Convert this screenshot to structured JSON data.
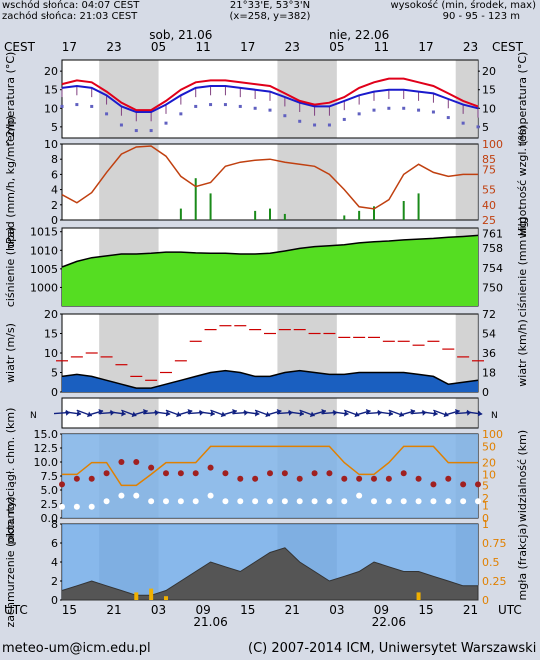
{
  "header": {
    "sunrise": "wschód słońca: 04:07 CEST",
    "sunset": "zachód słońca: 21:03 CEST",
    "coords": "21°33'E, 53°3'N",
    "grid": "(x=258, y=382)",
    "elev_label": "wysokość (min, środek, max)",
    "elev_values": "90 - 95 - 123 m"
  },
  "timeline": {
    "tz_top": "CEST",
    "tz_bottom": "UTC",
    "top_ticks": [
      "17",
      "23",
      "05",
      "11",
      "17",
      "23",
      "05",
      "11",
      "17",
      "23"
    ],
    "bottom_ticks": [
      "15",
      "21",
      "03",
      "09",
      "15",
      "21",
      "03",
      "09",
      "15",
      "21"
    ],
    "day1_top": "sob, 21.06",
    "day2_top": "nie, 22.06",
    "day1_bottom": "21.06",
    "day2_bottom": "22.06"
  },
  "footer": {
    "email": "meteo-um@icm.edu.pl",
    "copyright": "(C) 2007-2014 ICM, Uniwersytet Warszawski"
  },
  "colors": {
    "temp": "#e0001a",
    "dew": "#1a1acc",
    "humidity": "#c04010",
    "precip": "#1a8a1a",
    "pressure_fill": "#55dd22",
    "wind_fill": "#1a5fc0",
    "night_band": "#c8c8c8"
  },
  "chart_data": [
    {
      "type": "line",
      "panel": "temperature",
      "ylabel_left": "temperatura (°C)",
      "ylabel_right": "temperatura (°C)",
      "ylim": [
        2,
        23
      ],
      "ticks": [
        5,
        10,
        15,
        20
      ],
      "x_hours_utc": [
        14,
        16,
        18,
        20,
        22,
        24,
        26,
        28,
        30,
        32,
        34,
        36,
        38,
        40,
        42,
        44,
        46,
        48,
        50,
        52,
        54,
        56,
        58,
        60,
        62,
        64,
        66,
        68,
        70
      ],
      "series": [
        {
          "values": [
            16.5,
            17.5,
            17,
            14.5,
            11.5,
            9.5,
            9.5,
            12,
            15,
            17,
            17.5,
            17.5,
            17,
            16.5,
            16,
            14,
            12,
            11,
            11.5,
            13,
            15.5,
            17,
            18,
            18,
            17,
            16,
            14,
            12,
            10.5
          ]
        },
        {
          "values": [
            15.5,
            16,
            15.5,
            13.5,
            10.5,
            9,
            9,
            11,
            13.5,
            15.5,
            16,
            16,
            15.5,
            15,
            14.5,
            13,
            11.5,
            10.5,
            10.5,
            12,
            13.5,
            14.5,
            15,
            15,
            14.5,
            14,
            12.5,
            11,
            10
          ]
        }
      ]
    },
    {
      "type": "bar",
      "panel": "precip-humidity",
      "ylabel_left": "opad (mm/h, kg/m^2/h)",
      "ylabel_right": "wilgotność wzgl. (%)",
      "ylim_left": [
        0,
        10
      ],
      "ticks_left": [
        0,
        2,
        4,
        6,
        8,
        10
      ],
      "ylim_right": [
        25,
        100
      ],
      "ticks_right": [
        25,
        40,
        55,
        75,
        85,
        100
      ],
      "humidity": [
        50,
        42,
        52,
        72,
        90,
        97,
        98,
        88,
        68,
        58,
        62,
        78,
        82,
        84,
        85,
        82,
        80,
        78,
        70,
        55,
        38,
        36,
        45,
        70,
        80,
        72,
        68,
        70,
        70
      ],
      "precip_hour_utc": [
        30,
        32,
        34,
        40,
        42,
        44,
        52,
        54,
        56,
        60,
        62
      ],
      "precip_mm": [
        1.5,
        5.5,
        3.5,
        1.2,
        1.5,
        0.8,
        0.6,
        1.2,
        1.8,
        2.5,
        3.5
      ]
    },
    {
      "type": "area",
      "panel": "pressure",
      "ylabel_left": "ciśnienie (hPa)",
      "ylabel_right": "ciśnienie (mm Hg)",
      "ylim": [
        995,
        1016
      ],
      "ticks_left": [
        1000,
        1005,
        1010,
        1015
      ],
      "ticks_right": [
        750,
        754,
        758,
        761
      ],
      "values": [
        1005.5,
        1007,
        1008,
        1008.5,
        1009,
        1009,
        1009.2,
        1009.5,
        1009.5,
        1009.3,
        1009.2,
        1009.2,
        1009,
        1009,
        1009.2,
        1009.8,
        1010.5,
        1011,
        1011.2,
        1011.5,
        1012,
        1012.3,
        1012.5,
        1012.8,
        1013,
        1013.2,
        1013.5,
        1013.7,
        1014
      ]
    },
    {
      "type": "area",
      "panel": "wind",
      "ylabel_left": "wiatr (m/s)",
      "ylabel_right": "wiatr (km/h)",
      "ylim": [
        0,
        20
      ],
      "ticks_left": [
        0,
        5,
        10,
        15,
        20
      ],
      "ticks_right": [
        0,
        18,
        36,
        54,
        72
      ],
      "speed": [
        4,
        4.5,
        4,
        3,
        2,
        1,
        1,
        2,
        3,
        4,
        5,
        5.5,
        5,
        4,
        4,
        5,
        5.5,
        5,
        4.5,
        4.5,
        5,
        5,
        5,
        5,
        4.5,
        4,
        2,
        2.5,
        3
      ],
      "gust": [
        8,
        9,
        10,
        9,
        7,
        4,
        3,
        5,
        8,
        13,
        16,
        17,
        17,
        16,
        15,
        16,
        16,
        15,
        15,
        14,
        14,
        14,
        13,
        13,
        12,
        13,
        11,
        9,
        8
      ]
    },
    {
      "type": "scatter",
      "panel": "cloud-base-visibility",
      "ylabel_left": "pion. rozciągł. chm. (km)",
      "ylabel_right": "widzialność (km)",
      "ylim": [
        0,
        15
      ],
      "ticks_left": [
        0,
        2.5,
        5,
        7.5,
        10,
        12.5,
        15
      ],
      "labels_left": [
        "0.0",
        "2.5",
        "5.0",
        "7.5",
        "10.0",
        "12.5",
        "15.0"
      ],
      "ticks_right": [
        0,
        1,
        2,
        5,
        10,
        20,
        50,
        100
      ],
      "cloud_base": [
        6,
        7,
        7,
        8,
        10,
        10,
        9,
        8,
        8,
        8,
        9,
        8,
        7,
        7,
        8,
        8,
        7,
        8,
        8,
        7,
        7,
        7,
        7,
        8,
        7,
        6,
        7,
        6,
        6
      ],
      "cloud_top": [
        2,
        2,
        2,
        3,
        4,
        4,
        3,
        3,
        3,
        3,
        4,
        3,
        3,
        3,
        3,
        3,
        3,
        3,
        3,
        3,
        4,
        3,
        3,
        3,
        3,
        3,
        3,
        3,
        3
      ],
      "visibility_km": [
        10,
        10,
        20,
        20,
        5,
        5,
        10,
        20,
        20,
        20,
        50,
        50,
        50,
        50,
        50,
        50,
        50,
        50,
        50,
        20,
        10,
        10,
        20,
        50,
        50,
        50,
        20,
        20,
        20
      ]
    },
    {
      "type": "area",
      "panel": "clouds-fog",
      "ylabel_left": "zachmurzenie (oktanty)",
      "ylabel_right": "mgła (frakcja)",
      "ylim": [
        0,
        8
      ],
      "ticks_left": [
        0,
        2,
        4,
        6,
        8
      ],
      "ticks_right": [
        0,
        0.25,
        0.5,
        0.75,
        1
      ],
      "cloud_octa": [
        1,
        1.5,
        2,
        1.5,
        1,
        0.5,
        0.5,
        1,
        2,
        3,
        4,
        3.5,
        3,
        4,
        5,
        5.5,
        4,
        3,
        2,
        2.5,
        3,
        4,
        3.5,
        3,
        3,
        2.5,
        2,
        1.5,
        1.5
      ],
      "fog_frac": [
        0,
        0,
        0,
        0,
        0,
        0.1,
        0.15,
        0.05,
        0,
        0,
        0,
        0,
        0,
        0,
        0,
        0,
        0,
        0,
        0,
        0,
        0,
        0,
        0,
        0,
        0.1,
        0,
        0,
        0,
        0
      ]
    }
  ]
}
